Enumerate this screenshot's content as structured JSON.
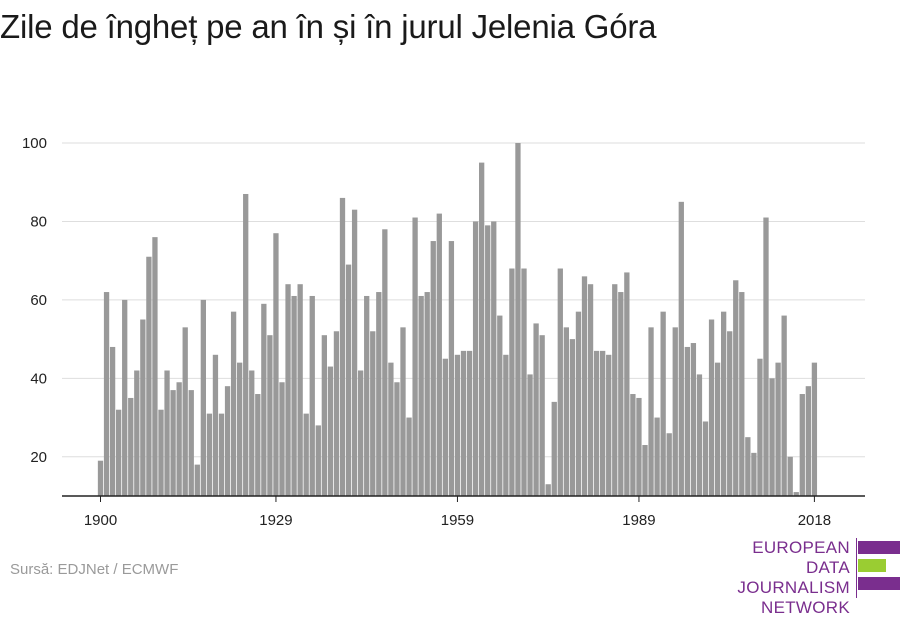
{
  "title": "Zile de îngheț pe an în și în jurul Jelenia Góra",
  "source": "Sursă: EDJNet / ECMWF",
  "logo": {
    "lines": [
      "EUROPEAN",
      "DATA JOURNALISM",
      "NETWORK"
    ],
    "colors": {
      "purple": "#7a2e8e",
      "green": "#9acd32"
    }
  },
  "chart_data": {
    "type": "bar",
    "x_start": 1900,
    "x_end": 2019,
    "xticks": [
      1900,
      1929,
      1959,
      1989,
      2018
    ],
    "yticks": [
      20,
      40,
      60,
      80,
      100
    ],
    "ylim": [
      10,
      100
    ],
    "grid": true,
    "bar_color": "#999999",
    "values": [
      19,
      62,
      48,
      32,
      60,
      35,
      42,
      55,
      71,
      76,
      32,
      42,
      37,
      39,
      53,
      37,
      18,
      60,
      31,
      46,
      31,
      38,
      57,
      44,
      87,
      42,
      36,
      59,
      51,
      77,
      39,
      64,
      61,
      64,
      31,
      61,
      28,
      51,
      43,
      52,
      86,
      69,
      83,
      42,
      61,
      52,
      62,
      78,
      44,
      39,
      53,
      30,
      81,
      61,
      62,
      75,
      82,
      45,
      75,
      46,
      47,
      47,
      80,
      95,
      79,
      80,
      56,
      46,
      68,
      100,
      68,
      41,
      54,
      51,
      13,
      34,
      68,
      53,
      50,
      57,
      66,
      64,
      47,
      47,
      46,
      64,
      62,
      67,
      36,
      35,
      23,
      53,
      30,
      57,
      26,
      53,
      85,
      48,
      49,
      41,
      29,
      55,
      44,
      57,
      52,
      65,
      62,
      25,
      21,
      45,
      81,
      40,
      44,
      56,
      20,
      11,
      36,
      38,
      44
    ]
  }
}
